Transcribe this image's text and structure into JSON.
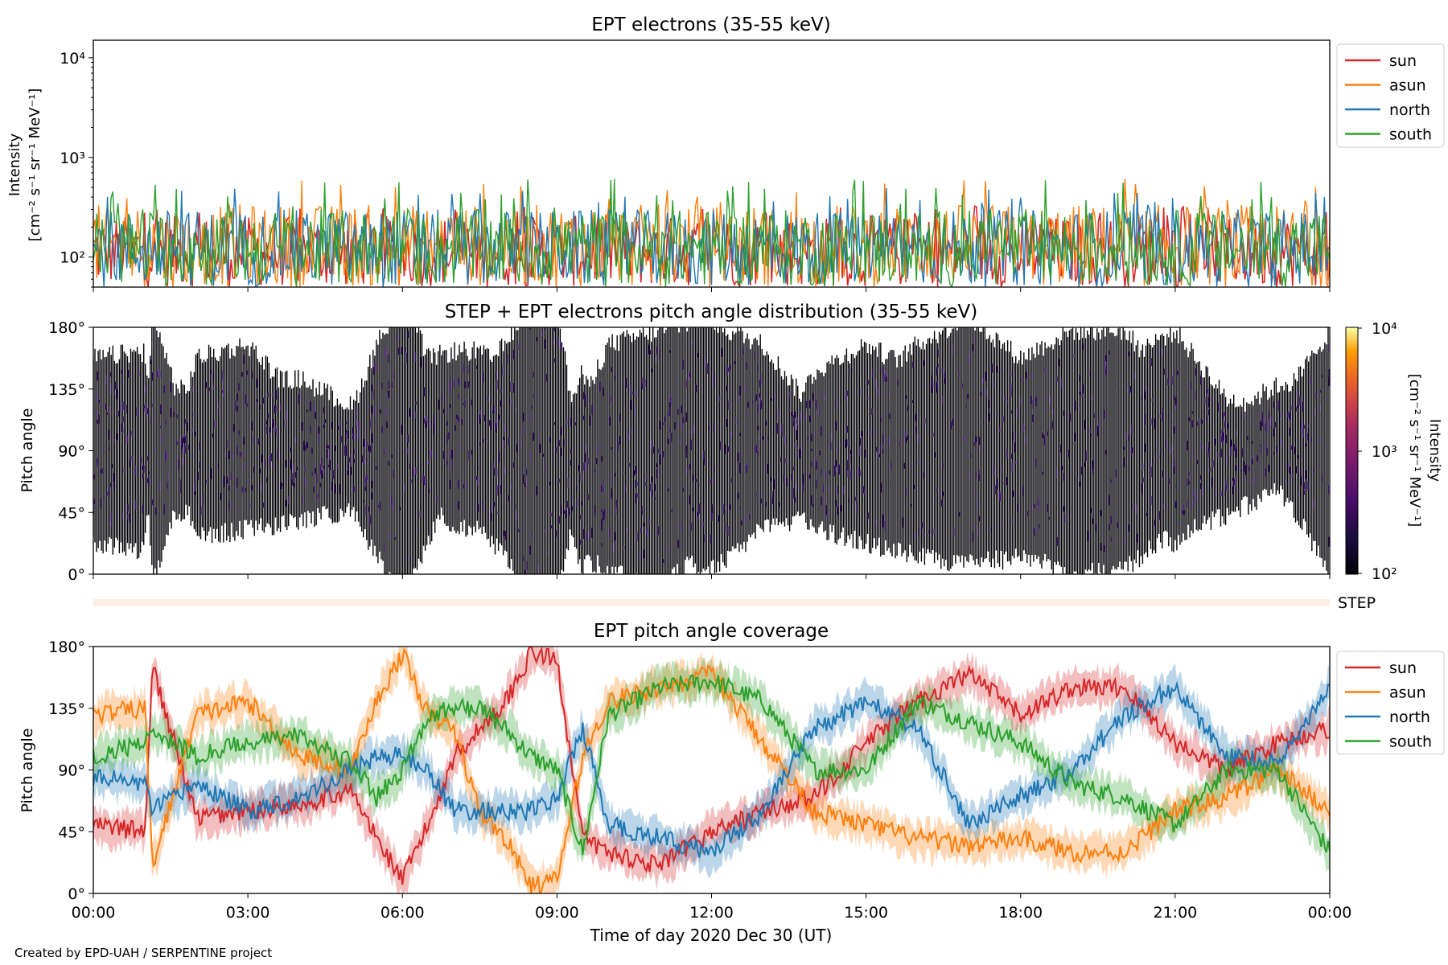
{
  "chart_data": [
    {
      "type": "line",
      "title": "EPT electrons (35-55 keV)",
      "ylabel": [
        "Intensity",
        "[cm⁻² s⁻¹ sr⁻¹ MeV⁻¹]"
      ],
      "yscale": "log",
      "ylim": [
        50,
        15000
      ],
      "yticks": [
        {
          "value": 100,
          "label": "10²"
        },
        {
          "value": 1000,
          "label": "10³"
        },
        {
          "value": 10000,
          "label": "10⁴"
        }
      ],
      "xlim_hours": [
        0,
        24
      ],
      "legend_position": "right",
      "series": [
        {
          "name": "sun",
          "color": "#d62728",
          "level_low": 50,
          "level_high": 260,
          "spike_max": 330
        },
        {
          "name": "asun",
          "color": "#ff7f0e",
          "level_low": 50,
          "level_high": 340,
          "spike_max": 620
        },
        {
          "name": "north",
          "color": "#1f77b4",
          "level_low": 50,
          "level_high": 300,
          "spike_max": 500
        },
        {
          "name": "south",
          "color": "#2ca02c",
          "level_low": 50,
          "level_high": 300,
          "spike_max": 610
        }
      ]
    },
    {
      "type": "heatmap",
      "title": "STEP + EPT electrons pitch angle distribution (35-55 keV)",
      "ylabel": "Pitch angle",
      "ylim": [
        0,
        180
      ],
      "yticks": [
        "0°",
        "45°",
        "90°",
        "135°",
        "180°"
      ],
      "colorbar": {
        "label": "Intensity",
        "unit": "[cm⁻² s⁻¹ sr⁻¹ MeV⁻¹]",
        "scale": "log",
        "range": [
          100,
          10000
        ],
        "ticks": [
          "10²",
          "10³",
          "10⁴"
        ],
        "colormap": "inferno"
      }
    },
    {
      "type": "bar",
      "label": "STEP",
      "color": "#fdeee6"
    },
    {
      "type": "line",
      "title": "EPT pitch angle coverage",
      "ylabel": "Pitch angle",
      "ylim": [
        0,
        180
      ],
      "yticks": [
        "0°",
        "45°",
        "90°",
        "135°",
        "180°"
      ],
      "legend_position": "right",
      "x": [
        0,
        1,
        1.15,
        2,
        3,
        4,
        5,
        5.5,
        6,
        6.5,
        7,
        7.5,
        8,
        8.5,
        9,
        9.5,
        10,
        11,
        12,
        13,
        14,
        15,
        16,
        17,
        18,
        19,
        20,
        21,
        22,
        23,
        24
      ],
      "series": [
        {
          "name": "sun",
          "color": "#d62728",
          "values": [
            50,
            45,
            165,
            55,
            60,
            65,
            75,
            40,
            10,
            50,
            100,
            120,
            140,
            175,
            170,
            40,
            30,
            20,
            45,
            60,
            70,
            110,
            140,
            160,
            130,
            150,
            150,
            110,
            90,
            110,
            120
          ]
        },
        {
          "name": "asun",
          "color": "#ff7f0e",
          "values": [
            130,
            135,
            20,
            130,
            140,
            100,
            90,
            140,
            175,
            130,
            120,
            60,
            40,
            5,
            10,
            100,
            140,
            150,
            160,
            110,
            60,
            50,
            40,
            35,
            40,
            30,
            30,
            60,
            70,
            90,
            60
          ]
        },
        {
          "name": "north",
          "color": "#1f77b4",
          "values": [
            85,
            80,
            60,
            80,
            60,
            70,
            90,
            100,
            100,
            90,
            60,
            60,
            60,
            60,
            70,
            120,
            50,
            40,
            30,
            60,
            120,
            140,
            120,
            50,
            70,
            90,
            130,
            150,
            100,
            95,
            150
          ]
        },
        {
          "name": "south",
          "color": "#2ca02c",
          "values": [
            100,
            110,
            120,
            100,
            110,
            115,
            95,
            70,
            90,
            130,
            135,
            135,
            120,
            100,
            90,
            30,
            130,
            150,
            155,
            140,
            90,
            90,
            140,
            125,
            110,
            80,
            70,
            50,
            90,
            90,
            30
          ]
        }
      ]
    }
  ],
  "xaxis": {
    "label": "Time of day 2020 Dec 30 (UT)",
    "ticks": [
      "00:00",
      "03:00",
      "06:00",
      "09:00",
      "12:00",
      "15:00",
      "18:00",
      "21:00",
      "00:00"
    ]
  },
  "credit": "Created by EPD-UAH / SERPENTINE project"
}
